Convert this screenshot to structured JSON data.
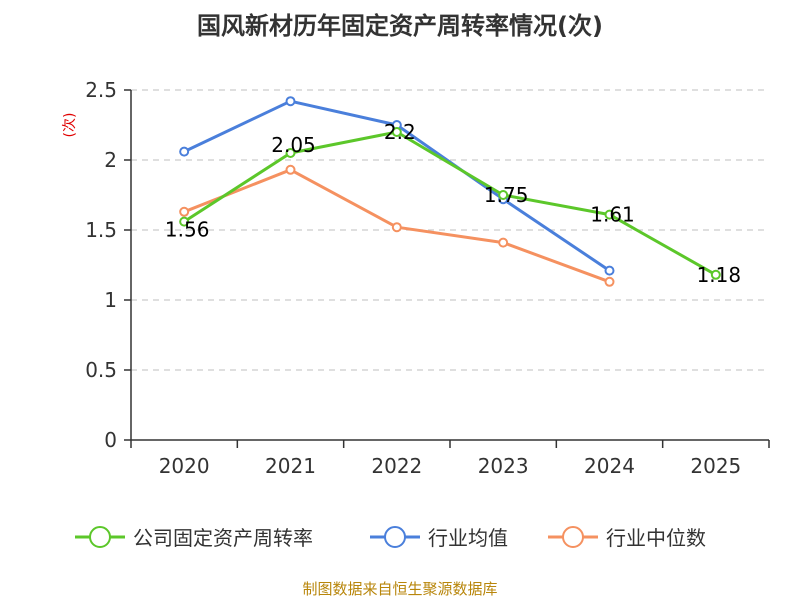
{
  "chart_data": {
    "type": "line",
    "title": "国风新材历年固定资产周转率情况(次)",
    "ylabel": "(次)",
    "xlabel": "",
    "categories": [
      "2020",
      "2021",
      "2022",
      "2023",
      "2024",
      "2025"
    ],
    "y_ticks": [
      "0",
      "0.5",
      "1",
      "1.5",
      "2",
      "2.5"
    ],
    "ylim": [
      0,
      2.5
    ],
    "grid": true,
    "legend_position": "bottom",
    "series": [
      {
        "name": "公司固定资产周转率",
        "color": "#5cc72a",
        "values": [
          1.56,
          2.05,
          2.2,
          1.75,
          1.61,
          1.18
        ],
        "labels": [
          "1.56",
          "2.05",
          "2.2",
          "1.75",
          "1.61",
          "1.18"
        ]
      },
      {
        "name": "行业均值",
        "color": "#4a7fdb",
        "values": [
          2.06,
          2.42,
          2.25,
          1.72,
          1.21,
          null
        ]
      },
      {
        "name": "行业中位数",
        "color": "#f59160",
        "values": [
          1.63,
          1.93,
          1.52,
          1.41,
          1.13,
          null
        ]
      }
    ],
    "source": "制图数据来自恒生聚源数据库"
  }
}
